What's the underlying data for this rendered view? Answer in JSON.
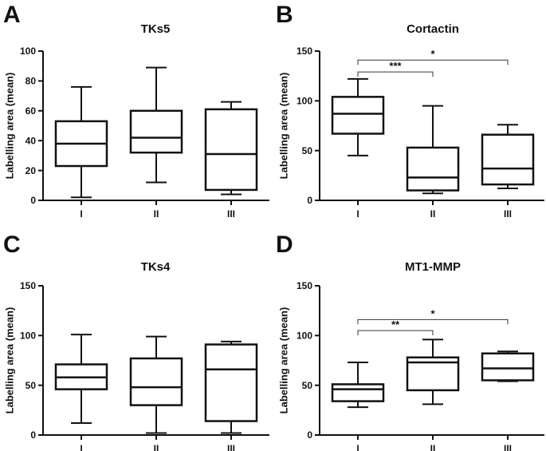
{
  "chart_data": [
    {
      "type": "boxplot",
      "panel": "A",
      "title": "TKs5",
      "ylabel": "Labelling area (mean)",
      "categories": [
        "I",
        "II",
        "III"
      ],
      "ylim": [
        0,
        100
      ],
      "yticks": [
        0,
        20,
        40,
        60,
        80,
        100
      ],
      "boxes": [
        {
          "category": "I",
          "min": 2,
          "q1": 23,
          "median": 38,
          "q3": 53,
          "max": 76
        },
        {
          "category": "II",
          "min": 12,
          "q1": 32,
          "median": 42,
          "q3": 60,
          "max": 89
        },
        {
          "category": "III",
          "min": 4,
          "q1": 7,
          "median": 31,
          "q3": 61,
          "max": 66
        }
      ],
      "significance": []
    },
    {
      "type": "boxplot",
      "panel": "B",
      "title": "Cortactin",
      "ylabel": "Labelling area (mean)",
      "categories": [
        "I",
        "II",
        "III"
      ],
      "ylim": [
        0,
        150
      ],
      "yticks": [
        0,
        50,
        100,
        150
      ],
      "boxes": [
        {
          "category": "I",
          "min": 45,
          "q1": 67,
          "median": 87,
          "q3": 104,
          "max": 122
        },
        {
          "category": "II",
          "min": 7,
          "q1": 10,
          "median": 23,
          "q3": 53,
          "max": 95
        },
        {
          "category": "III",
          "min": 12,
          "q1": 16,
          "median": 32,
          "q3": 66,
          "max": 76
        }
      ],
      "significance": [
        {
          "from": "I",
          "to": "II",
          "label": "***",
          "y": 129
        },
        {
          "from": "I",
          "to": "III",
          "label": "*",
          "y": 141
        }
      ]
    },
    {
      "type": "boxplot",
      "panel": "C",
      "title": "TKs4",
      "ylabel": "Labelling area (mean)",
      "categories": [
        "I",
        "II",
        "III"
      ],
      "ylim": [
        0,
        150
      ],
      "yticks": [
        0,
        50,
        100,
        150
      ],
      "boxes": [
        {
          "category": "I",
          "min": 12,
          "q1": 46,
          "median": 58,
          "q3": 71,
          "max": 101
        },
        {
          "category": "II",
          "min": 2,
          "q1": 30,
          "median": 48,
          "q3": 77,
          "max": 99
        },
        {
          "category": "III",
          "min": 2,
          "q1": 14,
          "median": 66,
          "q3": 91,
          "max": 94
        }
      ],
      "significance": []
    },
    {
      "type": "boxplot",
      "panel": "D",
      "title": "MT1-MMP",
      "ylabel": "Labelling area (mean)",
      "categories": [
        "I",
        "II",
        "III"
      ],
      "ylim": [
        0,
        150
      ],
      "yticks": [
        0,
        50,
        100,
        150
      ],
      "boxes": [
        {
          "category": "I",
          "min": 28,
          "q1": 34,
          "median": 46,
          "q3": 51,
          "max": 73
        },
        {
          "category": "II",
          "min": 31,
          "q1": 45,
          "median": 73,
          "q3": 78,
          "max": 96
        },
        {
          "category": "III",
          "min": 54,
          "q1": 55,
          "median": 67,
          "q3": 82,
          "max": 84
        }
      ],
      "significance": [
        {
          "from": "I",
          "to": "II",
          "label": "**",
          "y": 105
        },
        {
          "from": "I",
          "to": "III",
          "label": "*",
          "y": 116
        }
      ]
    }
  ]
}
